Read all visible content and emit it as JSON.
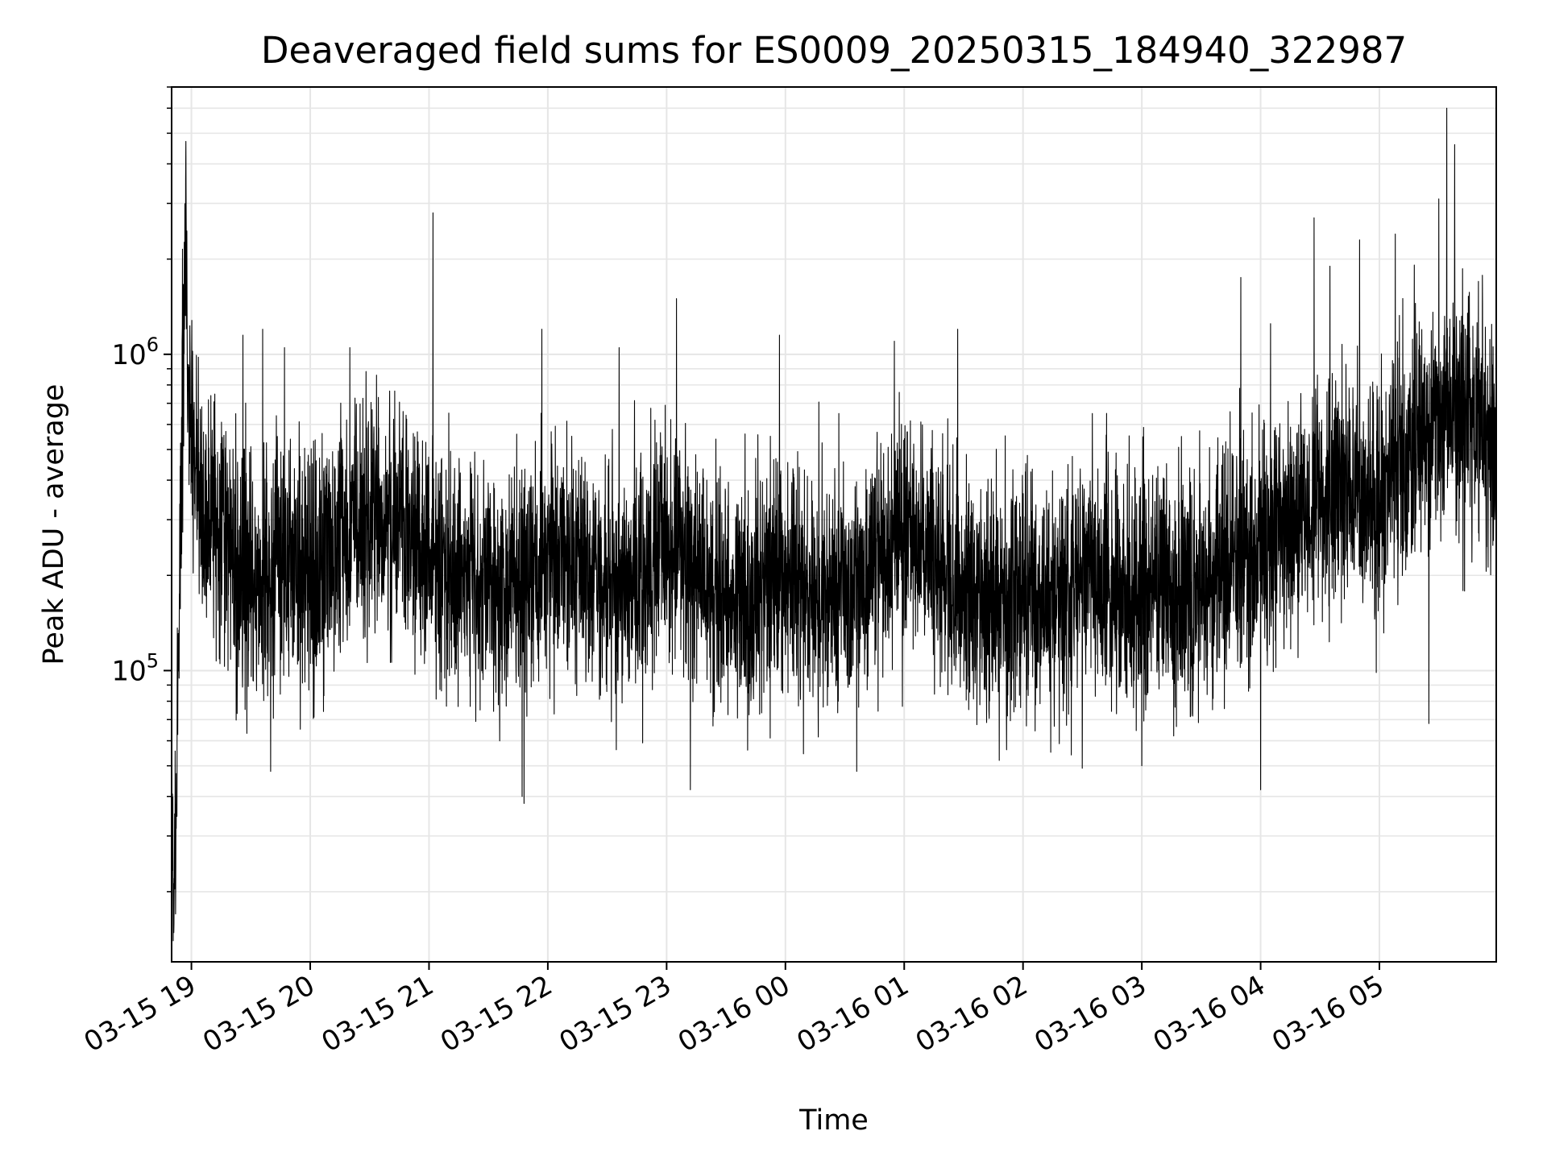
{
  "chart_data": {
    "type": "line",
    "title": "Deaveraged field sums for ES0009_20250315_184940_322987",
    "xlabel": "Time",
    "ylabel": "Peak ADU - average",
    "yscale": "log",
    "xlim": [
      "2025-03-15 18:50",
      "2025-03-16 05:59"
    ],
    "ylim": [
      12000,
      7000000
    ],
    "grid": true,
    "grid_color": "#e6e6e6",
    "line_color": "#000000",
    "x_ticks": [
      {
        "value": "2025-03-15 19:00",
        "label": "03-15 19"
      },
      {
        "value": "2025-03-15 20:00",
        "label": "03-15 20"
      },
      {
        "value": "2025-03-15 21:00",
        "label": "03-15 21"
      },
      {
        "value": "2025-03-15 22:00",
        "label": "03-15 22"
      },
      {
        "value": "2025-03-15 23:00",
        "label": "03-15 23"
      },
      {
        "value": "2025-03-16 00:00",
        "label": "03-16 00"
      },
      {
        "value": "2025-03-16 01:00",
        "label": "03-16 01"
      },
      {
        "value": "2025-03-16 02:00",
        "label": "03-16 02"
      },
      {
        "value": "2025-03-16 03:00",
        "label": "03-16 03"
      },
      {
        "value": "2025-03-16 04:00",
        "label": "03-16 04"
      },
      {
        "value": "2025-03-16 05:00",
        "label": "03-16 05"
      }
    ],
    "y_ticks": [
      {
        "value": 100000,
        "base": "10",
        "exp": "5"
      },
      {
        "value": 1000000,
        "base": "10",
        "exp": "6"
      }
    ],
    "series": [
      {
        "points": [
          [
            "2025-03-15 18:50",
            35000
          ],
          [
            "2025-03-15 18:51",
            16000
          ],
          [
            "2025-03-15 18:52",
            30000
          ],
          [
            "2025-03-15 18:53",
            70000
          ],
          [
            "2025-03-15 18:54",
            170000
          ],
          [
            "2025-03-15 18:55",
            500000
          ],
          [
            "2025-03-15 18:56",
            1000000
          ],
          [
            "2025-03-15 18:57",
            2600000
          ],
          [
            "2025-03-15 18:58",
            800000
          ],
          [
            "2025-03-15 19:00",
            650000
          ],
          [
            "2025-03-15 19:05",
            300000
          ],
          [
            "2025-03-15 19:10",
            350000
          ],
          [
            "2025-03-15 19:20",
            250000
          ],
          [
            "2025-03-15 19:30",
            180000
          ],
          [
            "2025-03-15 19:40",
            220000
          ],
          [
            "2025-03-15 19:50",
            200000
          ],
          [
            "2025-03-15 20:00",
            190000
          ],
          [
            "2025-03-15 20:20",
            280000
          ],
          [
            "2025-03-15 20:40",
            330000
          ],
          [
            "2025-03-15 21:00",
            250000
          ],
          [
            "2025-03-15 21:20",
            200000
          ],
          [
            "2025-03-15 21:40",
            170000
          ],
          [
            "2025-03-15 22:00",
            240000
          ],
          [
            "2025-03-15 22:20",
            210000
          ],
          [
            "2025-03-15 22:40",
            190000
          ],
          [
            "2025-03-15 23:00",
            250000
          ],
          [
            "2025-03-15 23:20",
            190000
          ],
          [
            "2025-03-15 23:40",
            170000
          ],
          [
            "2025-03-16 00:00",
            180000
          ],
          [
            "2025-03-16 00:20",
            170000
          ],
          [
            "2025-03-16 00:40",
            190000
          ],
          [
            "2025-03-16 01:00",
            270000
          ],
          [
            "2025-03-16 01:20",
            200000
          ],
          [
            "2025-03-16 01:40",
            160000
          ],
          [
            "2025-03-16 02:00",
            180000
          ],
          [
            "2025-03-16 02:20",
            170000
          ],
          [
            "2025-03-16 02:40",
            200000
          ],
          [
            "2025-03-16 03:00",
            190000
          ],
          [
            "2025-03-16 03:20",
            170000
          ],
          [
            "2025-03-16 03:40",
            210000
          ],
          [
            "2025-03-16 04:00",
            240000
          ],
          [
            "2025-03-16 04:20",
            300000
          ],
          [
            "2025-03-16 04:40",
            380000
          ],
          [
            "2025-03-16 05:00",
            350000
          ],
          [
            "2025-03-16 05:20",
            550000
          ],
          [
            "2025-03-16 05:40",
            700000
          ],
          [
            "2025-03-16 05:59",
            500000
          ]
        ],
        "spikes": [
          [
            "2025-03-15 19:26",
            1150000
          ],
          [
            "2025-03-15 19:36",
            1200000
          ],
          [
            "2025-03-15 19:47",
            1050000
          ],
          [
            "2025-03-15 20:20",
            1050000
          ],
          [
            "2025-03-15 21:02",
            2800000
          ],
          [
            "2025-03-15 21:57",
            1200000
          ],
          [
            "2025-03-15 22:36",
            1050000
          ],
          [
            "2025-03-15 23:05",
            1500000
          ],
          [
            "2025-03-15 23:57",
            1150000
          ],
          [
            "2025-03-16 00:27",
            650000
          ],
          [
            "2025-03-16 00:55",
            1100000
          ],
          [
            "2025-03-16 01:27",
            1200000
          ],
          [
            "2025-03-16 02:35",
            650000
          ],
          [
            "2025-03-16 03:20",
            550000
          ],
          [
            "2025-03-16 03:50",
            1750000
          ],
          [
            "2025-03-16 04:05",
            1250000
          ],
          [
            "2025-03-16 04:27",
            2700000
          ],
          [
            "2025-03-16 04:35",
            1900000
          ],
          [
            "2025-03-16 04:50",
            2300000
          ],
          [
            "2025-03-16 05:08",
            2400000
          ],
          [
            "2025-03-16 05:30",
            3100000
          ],
          [
            "2025-03-16 05:34",
            6000000
          ],
          [
            "2025-03-16 05:38",
            4600000
          ],
          [
            "2025-03-16 05:50",
            1700000
          ]
        ],
        "dips": [
          [
            "2025-03-15 18:51",
            15000
          ],
          [
            "2025-03-15 18:52",
            17000
          ],
          [
            "2025-03-15 19:40",
            48000
          ],
          [
            "2025-03-15 21:47",
            40000
          ],
          [
            "2025-03-15 21:48",
            38000
          ],
          [
            "2025-03-15 23:12",
            42000
          ],
          [
            "2025-03-16 00:36",
            48000
          ],
          [
            "2025-03-16 01:48",
            52000
          ],
          [
            "2025-03-16 03:00",
            50000
          ],
          [
            "2025-03-16 04:00",
            42000
          ],
          [
            "2025-03-16 05:25",
            68000
          ]
        ]
      }
    ]
  }
}
